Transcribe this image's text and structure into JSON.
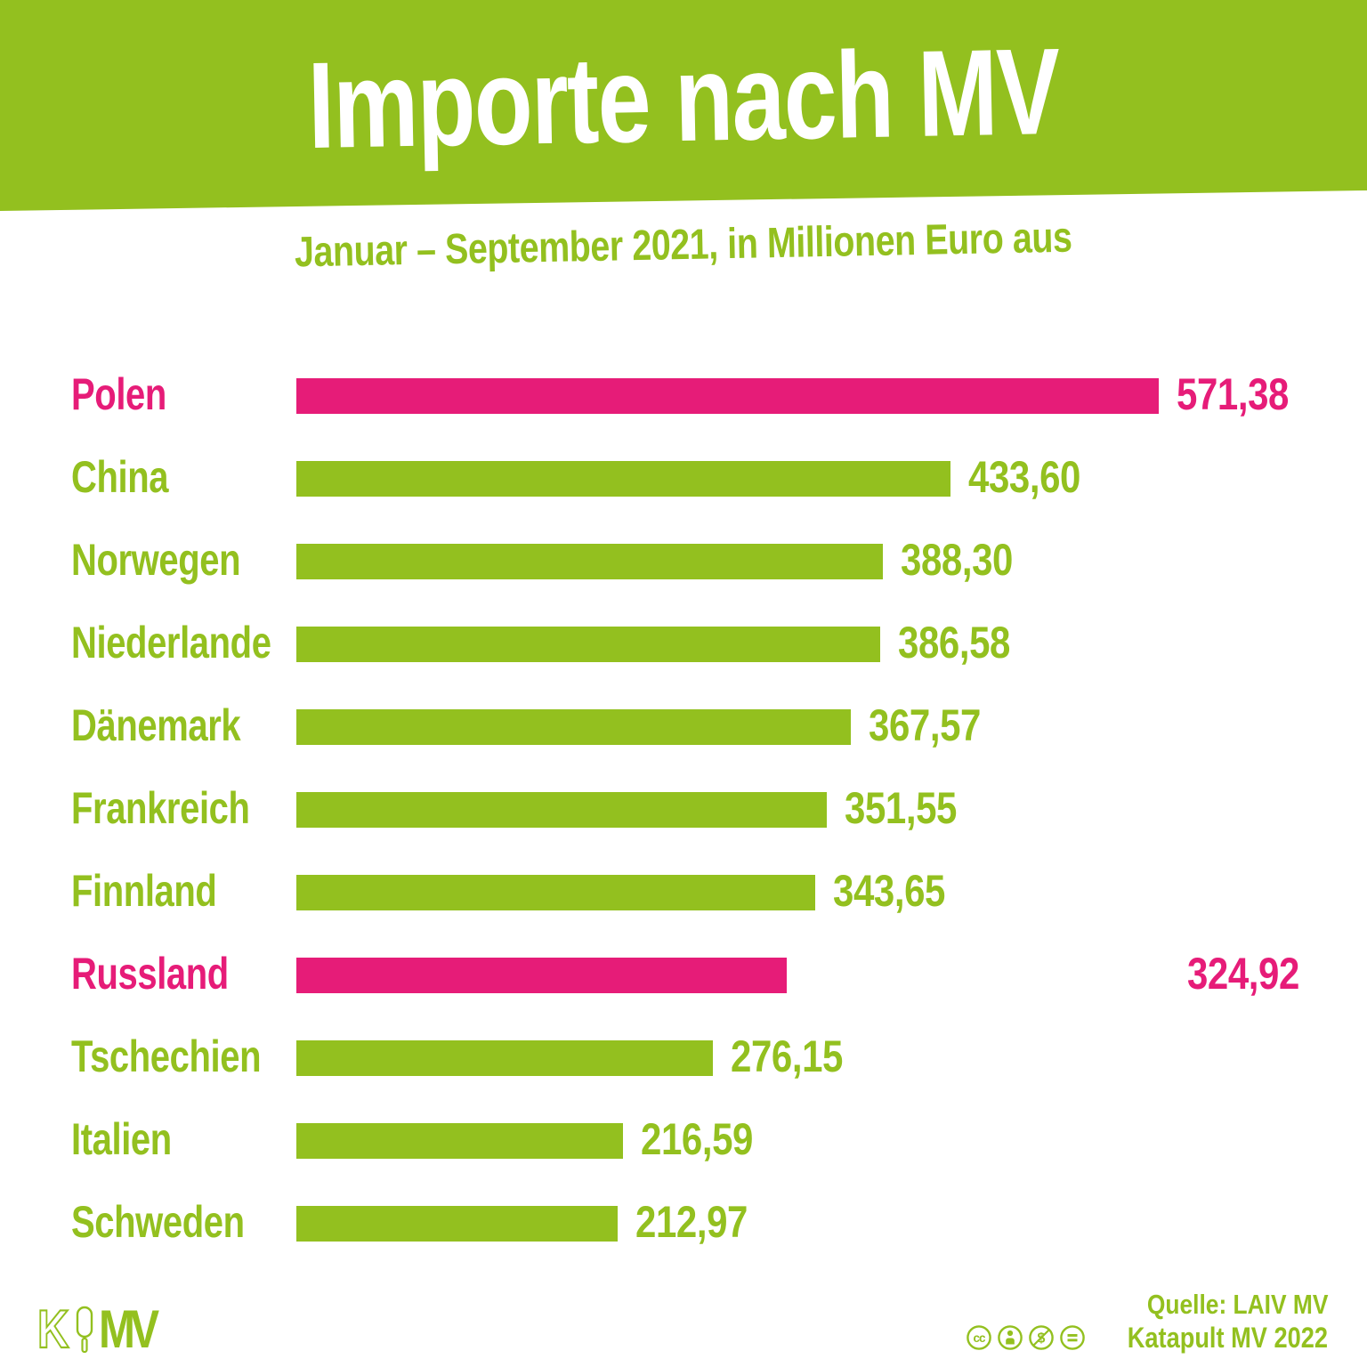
{
  "header": {
    "title": "Importe nach MV",
    "subtitle": "Januar – September 2021, in Millionen Euro aus"
  },
  "chart_data": {
    "type": "bar",
    "orientation": "horizontal",
    "title": "Importe nach MV",
    "subtitle": "Januar – September 2021, in Millionen Euro aus",
    "unit": "Millionen Euro",
    "xlim": [
      0,
      571.38
    ],
    "grid": false,
    "legend": "none",
    "categories": [
      "Polen",
      "China",
      "Norwegen",
      "Niederlande",
      "Dänemark",
      "Frankreich",
      "Finnland",
      "Russland",
      "Tschechien",
      "Italien",
      "Schweden"
    ],
    "values": [
      571.38,
      433.6,
      388.3,
      386.58,
      367.57,
      351.55,
      343.65,
      324.92,
      276.15,
      216.59,
      212.97
    ],
    "value_labels": [
      "571,38",
      "433,60",
      "388,30",
      "386,58",
      "367,57",
      "351,55",
      "343,65",
      "324,92",
      "276,15",
      "216,59",
      "212,97"
    ],
    "highlighted_categories": [
      "Polen",
      "Russland"
    ],
    "value_label_alignment": {
      "Russland": "right"
    },
    "colors": {
      "bar_default": "#93c01f",
      "bar_highlight": "#e61c78",
      "title_text": "#ffffff",
      "banner_background": "#93c01f"
    }
  },
  "footer": {
    "logo": {
      "k": "K",
      "mv": "MV",
      "popsicle_icon": "popsicle-icon"
    },
    "source_line1": "Quelle: LAIV MV",
    "source_line2": "Katapult MV 2022",
    "license_icons": [
      "cc-icon",
      "cc-by-icon",
      "cc-nc-icon",
      "cc-nd-icon"
    ]
  }
}
